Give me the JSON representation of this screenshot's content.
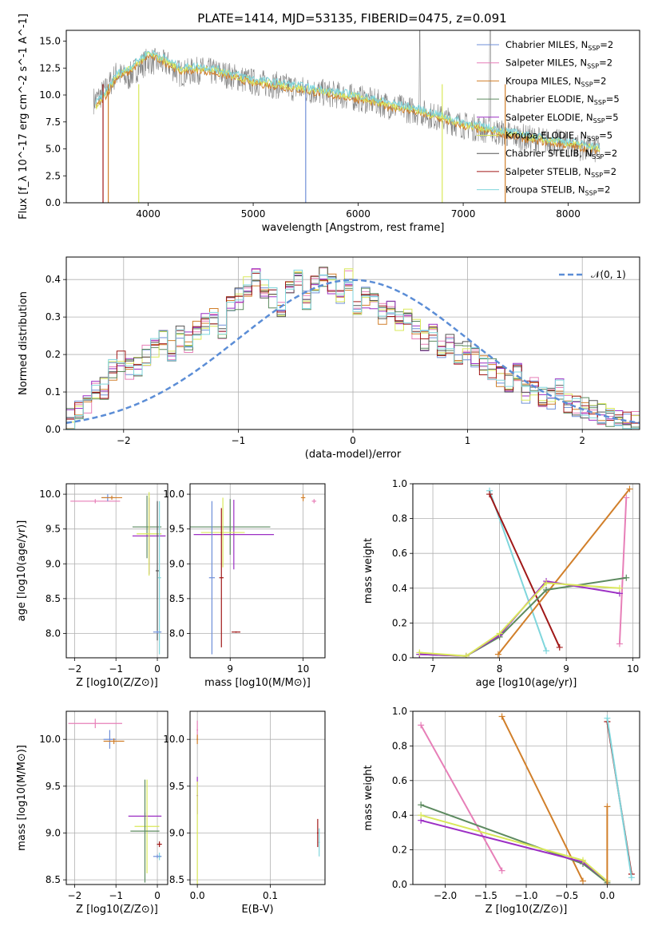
{
  "figure_title": "PLATE=1414, MJD=53135, FIBERID=0475, z=0.091",
  "series_styles": [
    {
      "name": "Chabrier MILES",
      "nssp": "2",
      "color": "#6f8fd8"
    },
    {
      "name": "Salpeter MILES",
      "nssp": "2",
      "color": "#e77fb8"
    },
    {
      "name": "Kroupa MILES",
      "nssp": "2",
      "color": "#d17f2a"
    },
    {
      "name": "Chabrier ELODIE",
      "nssp": "5",
      "color": "#5c8a5f"
    },
    {
      "name": "Salpeter ELODIE",
      "nssp": "5",
      "color": "#9c2fc4"
    },
    {
      "name": "Kroupa ELODIE",
      "nssp": "5",
      "color": "#d9e85a"
    },
    {
      "name": "Chabrier STELIB",
      "nssp": "2",
      "color": "#555555"
    },
    {
      "name": "Salpeter STELIB",
      "nssp": "2",
      "color": "#a01818"
    },
    {
      "name": "Kroupa STELIB",
      "nssp": "2",
      "color": "#7fd6dc"
    }
  ],
  "chart_data": [
    {
      "id": "spectrum",
      "type": "line",
      "xlabel": "wavelength [Angstrom, rest frame]",
      "ylabel": "Flux [f_λ 10^-17 erg cm^-2 s^-1 A^-1]",
      "xlim": [
        3220,
        8680
      ],
      "ylim": [
        0,
        16
      ],
      "xticks": [
        4000,
        5000,
        6000,
        7000,
        8000
      ],
      "yticks": [
        0.0,
        2.5,
        5.0,
        7.5,
        10.0,
        12.5,
        15.0
      ],
      "legend": "top-right",
      "data_series": {
        "name": "data",
        "color": "#808080",
        "x": [
          3500,
          3600,
          3700,
          3800,
          3900,
          4000,
          4100,
          4200,
          4300,
          4500,
          4700,
          5000,
          5300,
          5600,
          6000,
          6300,
          6550,
          6800,
          7000,
          7300,
          7600,
          8000,
          8300
        ],
        "y": [
          9.5,
          10.5,
          12.0,
          11.5,
          12.5,
          13.2,
          13.0,
          12.8,
          12.0,
          12.3,
          12.0,
          11.2,
          10.8,
          10.3,
          9.7,
          9.0,
          8.5,
          7.8,
          7.2,
          6.6,
          6.0,
          5.4,
          4.8
        ]
      },
      "model": {
        "x": [
          3500,
          3600,
          3700,
          3800,
          3900,
          4000,
          4100,
          4200,
          4300,
          4500,
          4700,
          5000,
          5300,
          5600,
          6000,
          6300,
          6550,
          6800,
          7000,
          7300,
          7600,
          8000,
          8300
        ],
        "y": [
          9.0,
          10.2,
          11.8,
          12.2,
          13.0,
          13.8,
          13.5,
          13.0,
          12.4,
          12.5,
          12.1,
          11.3,
          10.9,
          10.4,
          9.8,
          9.1,
          8.6,
          7.9,
          7.3,
          6.7,
          6.1,
          5.5,
          5.0
        ]
      }
    },
    {
      "id": "residuals",
      "type": "line",
      "xlabel": "(data-model)/error",
      "ylabel": "Normed distribution",
      "xlim": [
        -2.5,
        2.5
      ],
      "ylim": [
        0,
        0.46
      ],
      "xticks": [
        -2,
        -1,
        0,
        1,
        2
      ],
      "yticks": [
        0.0,
        0.1,
        0.2,
        0.3,
        0.4
      ],
      "legend": "top-right",
      "gaussian_label": "𝒩(0, 1)",
      "histogram_center": [
        0.03,
        0.05,
        0.07,
        0.1,
        0.11,
        0.16,
        0.18,
        0.16,
        0.17,
        0.2,
        0.22,
        0.24,
        0.21,
        0.25,
        0.23,
        0.27,
        0.28,
        0.3,
        0.25,
        0.33,
        0.35,
        0.38,
        0.4,
        0.38,
        0.35,
        0.33,
        0.37,
        0.4,
        0.35,
        0.38,
        0.41,
        0.39,
        0.36,
        0.4,
        0.33,
        0.35,
        0.34,
        0.31,
        0.33,
        0.29,
        0.3,
        0.27,
        0.24,
        0.26,
        0.22,
        0.23,
        0.2,
        0.21,
        0.19,
        0.17,
        0.16,
        0.14,
        0.12,
        0.15,
        0.1,
        0.12,
        0.09,
        0.08,
        0.11,
        0.07,
        0.06,
        0.06,
        0.05,
        0.04,
        0.03,
        0.03,
        0.02,
        0.02
      ]
    },
    {
      "id": "age-vs-Z",
      "type": "scatter",
      "xlabel": "Z [log10(Z/Z⊙)]",
      "ylabel": "age [log10(age/yr)]",
      "xlim": [
        -2.2,
        0.25
      ],
      "ylim": [
        7.65,
        10.15
      ],
      "xticks": [
        -2,
        -1,
        0
      ],
      "yticks": [
        8.0,
        8.5,
        9.0,
        9.5,
        10.0
      ],
      "points": [
        {
          "s": 1,
          "x": -1.5,
          "y": 9.9,
          "xe": 0.6,
          "ye": 0.03
        },
        {
          "s": 0,
          "x": -1.2,
          "y": 9.95,
          "xe": 0.15,
          "ye": 0.05
        },
        {
          "s": 2,
          "x": -1.1,
          "y": 9.95,
          "xe": 0.25,
          "ye": 0.03
        },
        {
          "s": 3,
          "x": -0.25,
          "y": 9.53,
          "xe": 0.35,
          "ye": 0.45
        },
        {
          "s": 4,
          "x": -0.2,
          "y": 9.4,
          "xe": 0.4,
          "ye": 0.55
        },
        {
          "s": 5,
          "x": -0.2,
          "y": 9.43,
          "xe": 0.3,
          "ye": 0.6
        },
        {
          "s": 6,
          "x": 0.0,
          "y": 8.9,
          "xe": 0.04,
          "ye": 1.0
        },
        {
          "s": 8,
          "x": 0.05,
          "y": 8.8,
          "xe": 0.04,
          "ye": 1.1
        },
        {
          "s": 0,
          "x": 0.0,
          "y": 8.02,
          "xe": 0.1,
          "ye": 0.02
        }
      ]
    },
    {
      "id": "age-vs-mass",
      "type": "scatter",
      "xlabel": "mass [log10(M/M⊙)]",
      "ylabel": "",
      "xlim": [
        8.45,
        10.3
      ],
      "ylim": [
        7.65,
        10.15
      ],
      "xticks": [
        9,
        10
      ],
      "yticks": [
        8.0,
        8.5,
        9.0,
        9.5,
        10.0
      ],
      "points": [
        {
          "s": 3,
          "x": 9.0,
          "y": 9.53,
          "xe": 0.55,
          "ye": 0.4
        },
        {
          "s": 4,
          "x": 9.05,
          "y": 9.42,
          "xe": 0.55,
          "ye": 0.5
        },
        {
          "s": 5,
          "x": 8.9,
          "y": 9.45,
          "xe": 0.3,
          "ye": 0.5
        },
        {
          "s": 0,
          "x": 8.75,
          "y": 8.8,
          "xe": 0.04,
          "ye": 1.1
        },
        {
          "s": 7,
          "x": 8.88,
          "y": 8.8,
          "xe": 0.03,
          "ye": 1.0
        },
        {
          "s": 7,
          "x": 9.08,
          "y": 8.02,
          "xe": 0.06,
          "ye": 0.01
        },
        {
          "s": 2,
          "x": 10.0,
          "y": 9.95,
          "xe": 0.03,
          "ye": 0.05
        },
        {
          "s": 1,
          "x": 10.15,
          "y": 9.9,
          "xe": 0.03,
          "ye": 0.03
        }
      ]
    },
    {
      "id": "weight-vs-age",
      "type": "line",
      "xlabel": "age [log10(age/yr)]",
      "ylabel": "mass weight",
      "xlim": [
        6.7,
        10.1
      ],
      "ylim": [
        0,
        1.0
      ],
      "xticks": [
        7,
        8,
        9,
        10
      ],
      "yticks": [
        0.0,
        0.2,
        0.4,
        0.6,
        0.8,
        1.0
      ],
      "series": [
        {
          "s": 8,
          "x": [
            7.85,
            8.7
          ],
          "y": [
            0.96,
            0.04
          ]
        },
        {
          "s": 7,
          "x": [
            7.85,
            8.9
          ],
          "y": [
            0.94,
            0.06
          ]
        },
        {
          "s": 2,
          "x": [
            7.98,
            9.95
          ],
          "y": [
            0.02,
            0.97
          ]
        },
        {
          "s": 1,
          "x": [
            9.8,
            9.9
          ],
          "y": [
            0.08,
            0.92
          ]
        },
        {
          "s": 3,
          "x": [
            6.8,
            7.5,
            8.0,
            8.7,
            9.9
          ],
          "y": [
            0.02,
            0.01,
            0.12,
            0.39,
            0.46
          ]
        },
        {
          "s": 4,
          "x": [
            6.8,
            7.5,
            8.0,
            8.7,
            9.8
          ],
          "y": [
            0.02,
            0.01,
            0.13,
            0.44,
            0.37
          ]
        },
        {
          "s": 5,
          "x": [
            6.8,
            7.5,
            8.0,
            8.7,
            9.8
          ],
          "y": [
            0.03,
            0.01,
            0.14,
            0.43,
            0.4
          ]
        }
      ]
    },
    {
      "id": "mass-vs-Z",
      "type": "scatter",
      "xlabel": "Z [log10(Z/Z⊙)]",
      "ylabel": "mass [log10(M/M⊙)]",
      "xlim": [
        -2.2,
        0.25
      ],
      "ylim": [
        8.45,
        10.3
      ],
      "xticks": [
        -2,
        -1,
        0
      ],
      "yticks": [
        8.5,
        9.0,
        9.5,
        10.0
      ],
      "points": [
        {
          "s": 1,
          "x": -1.5,
          "y": 10.17,
          "xe": 0.65,
          "ye": 0.05
        },
        {
          "s": 0,
          "x": -1.15,
          "y": 10.0,
          "xe": 0.15,
          "ye": 0.1
        },
        {
          "s": 2,
          "x": -1.05,
          "y": 9.98,
          "xe": 0.25,
          "ye": 0.03
        },
        {
          "s": 4,
          "x": -0.3,
          "y": 9.18,
          "xe": 0.4,
          "ye": 0.04
        },
        {
          "s": 5,
          "x": -0.25,
          "y": 9.07,
          "xe": 0.3,
          "ye": 0.5
        },
        {
          "s": 3,
          "x": -0.3,
          "y": 9.02,
          "xe": 0.35,
          "ye": 0.55
        },
        {
          "s": 7,
          "x": 0.05,
          "y": 8.88,
          "xe": 0.06,
          "ye": 0.03
        },
        {
          "s": 8,
          "x": 0.05,
          "y": 8.75,
          "xe": 0.05,
          "ye": 0.04
        },
        {
          "s": 0,
          "x": 0.0,
          "y": 8.75,
          "xe": 0.1,
          "ye": 0.02
        }
      ]
    },
    {
      "id": "mass-vs-ebv",
      "type": "scatter",
      "xlabel": "E(B-V)",
      "ylabel": "",
      "xlim": [
        -0.01,
        0.175
      ],
      "ylim": [
        8.45,
        10.3
      ],
      "xticks": [
        0.0,
        0.1
      ],
      "yticks": [
        8.5,
        9.0,
        9.5,
        10.0
      ],
      "points": [
        {
          "s": 1,
          "x": 0.0,
          "y": 10.1,
          "xe": 0.001,
          "ye": 0.1
        },
        {
          "s": 2,
          "x": 0.0,
          "y": 10.0,
          "xe": 0.001,
          "ye": 0.05
        },
        {
          "s": 4,
          "x": 0.0,
          "y": 9.4,
          "xe": 0.001,
          "ye": 0.2
        },
        {
          "s": 5,
          "x": 0.0,
          "y": 9.0,
          "xe": 0.001,
          "ye": 0.55
        },
        {
          "s": 7,
          "x": 0.165,
          "y": 9.0,
          "xe": 0.001,
          "ye": 0.15
        },
        {
          "s": 8,
          "x": 0.167,
          "y": 8.9,
          "xe": 0.001,
          "ye": 0.15
        }
      ]
    },
    {
      "id": "weight-vs-Z",
      "type": "line",
      "xlabel": "Z [log10(Z/Z⊙)]",
      "ylabel": "mass weight",
      "xlim": [
        -2.4,
        0.4
      ],
      "ylim": [
        0,
        1.0
      ],
      "xticks": [
        -2.0,
        -1.5,
        -1.0,
        -0.5,
        0.0
      ],
      "yticks": [
        0.0,
        0.2,
        0.4,
        0.6,
        0.8,
        1.0
      ],
      "series": [
        {
          "s": 1,
          "x": [
            -2.3,
            -1.3
          ],
          "y": [
            0.92,
            0.08
          ]
        },
        {
          "s": 2,
          "x": [
            -1.3,
            -0.3
          ],
          "y": [
            0.97,
            0.02
          ]
        },
        {
          "s": 3,
          "x": [
            -2.3,
            -0.3,
            0.0
          ],
          "y": [
            0.46,
            0.12,
            0.01
          ]
        },
        {
          "s": 4,
          "x": [
            -2.3,
            -0.3,
            0.0
          ],
          "y": [
            0.37,
            0.13,
            0.02
          ]
        },
        {
          "s": 5,
          "x": [
            -2.3,
            -0.3,
            0.0
          ],
          "y": [
            0.4,
            0.14,
            0.02
          ]
        },
        {
          "s": 7,
          "x": [
            0.0,
            0.3
          ],
          "y": [
            0.94,
            0.06
          ]
        },
        {
          "s": 8,
          "x": [
            0.0,
            0.3
          ],
          "y": [
            0.96,
            0.04
          ]
        },
        {
          "s": 2,
          "x": [
            0.0,
            0.0
          ],
          "y": [
            0.45,
            0.0
          ]
        }
      ]
    }
  ]
}
